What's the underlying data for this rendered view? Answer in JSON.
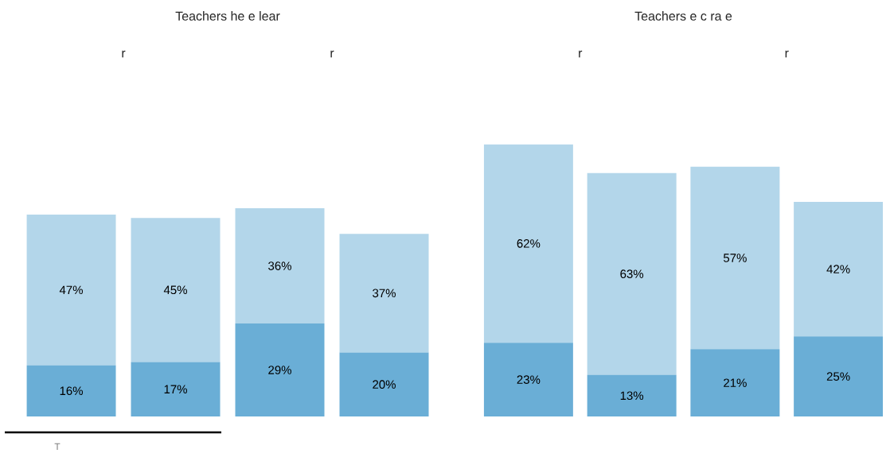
{
  "chart_data": [
    {
      "type": "bar",
      "title": "Teachers he e lear",
      "categories": [
        null,
        null,
        null,
        null
      ],
      "stacked": true,
      "series": [
        {
          "color": "#6aaed6",
          "values": [
            16,
            17,
            29,
            20
          ],
          "value_labels": [
            "16%",
            "17%",
            "29%",
            "20%"
          ]
        },
        {
          "color": "#b3d6ea",
          "values": [
            47,
            45,
            36,
            37
          ],
          "value_labels": [
            "47%",
            "45%",
            "36%",
            "37%"
          ]
        }
      ],
      "annotations": [
        "r",
        "r",
        "T"
      ]
    },
    {
      "type": "bar",
      "title": "Teachers e c ra e",
      "categories": [
        null,
        null,
        null,
        null
      ],
      "stacked": true,
      "series": [
        {
          "color": "#6aaed6",
          "values": [
            23,
            13,
            21,
            25
          ],
          "value_labels": [
            "23%",
            "13%",
            "21%",
            "25%"
          ]
        },
        {
          "color": "#b3d6ea",
          "values": [
            62,
            63,
            57,
            42
          ],
          "value_labels": [
            "62%",
            "63%",
            "57%",
            "42%"
          ]
        }
      ],
      "annotations": [
        "r",
        "r"
      ]
    }
  ]
}
